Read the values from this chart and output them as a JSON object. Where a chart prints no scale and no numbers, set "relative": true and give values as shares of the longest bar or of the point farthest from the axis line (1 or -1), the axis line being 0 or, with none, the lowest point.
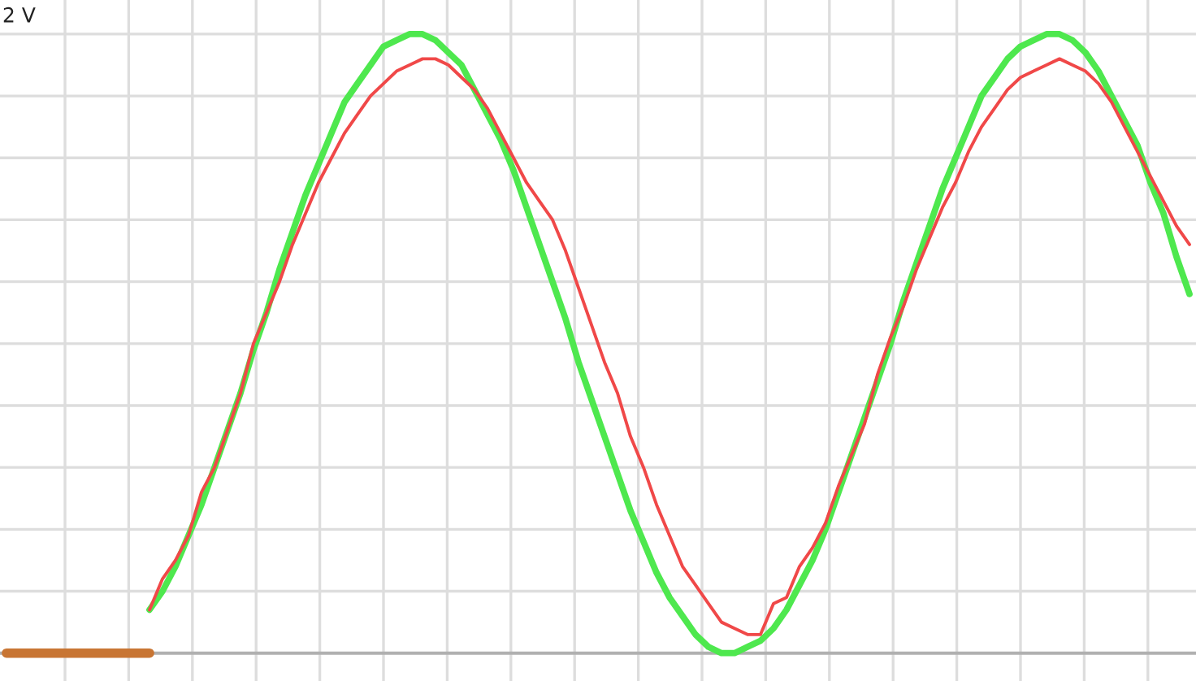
{
  "chart_data": {
    "type": "line",
    "relative": true,
    "grid": true,
    "annotations": [
      "2 V"
    ],
    "categories": [
      null,
      null,
      null,
      null,
      null,
      null,
      null,
      null,
      null,
      null,
      null,
      null,
      null,
      null,
      null,
      null,
      null,
      null,
      null,
      null,
      null,
      null,
      null,
      null,
      null,
      null,
      null,
      null,
      null,
      null,
      null,
      null,
      null,
      null,
      null,
      null,
      null,
      null,
      null,
      null,
      null,
      null,
      null,
      null,
      null,
      null,
      null,
      null,
      null,
      null,
      null,
      null,
      null,
      null,
      null,
      null,
      null,
      null,
      null,
      null,
      null,
      null,
      null,
      null,
      null,
      null,
      null,
      null,
      null,
      null,
      null,
      null,
      null,
      null,
      null,
      null,
      null,
      null,
      null,
      null,
      null,
      null,
      null,
      null,
      null,
      null,
      null,
      null,
      null,
      null,
      null,
      null
    ],
    "series": [
      {
        "color": "#c87533",
        "values": [
          0,
          0,
          0,
          0,
          0,
          0,
          0,
          0,
          0,
          0,
          0,
          0,
          null,
          null,
          null,
          null,
          null,
          null,
          null,
          null,
          null,
          null,
          null,
          null,
          null,
          null,
          null,
          null,
          null,
          null,
          null,
          null,
          null,
          null,
          null,
          null,
          null,
          null,
          null,
          null,
          null,
          null,
          null,
          null,
          null,
          null,
          null,
          null,
          null,
          null,
          null,
          null,
          null,
          null,
          null,
          null,
          null,
          null,
          null,
          null,
          null,
          null,
          null,
          null,
          null,
          null,
          null,
          null,
          null,
          null,
          null,
          null,
          null,
          null,
          null,
          null,
          null,
          null,
          null,
          null,
          null,
          null,
          null,
          null,
          null,
          null,
          null,
          null,
          null,
          null,
          null,
          null
        ]
      },
      {
        "color": "#4ee84e",
        "values": [
          null,
          null,
          null,
          null,
          null,
          null,
          null,
          null,
          null,
          null,
          null,
          0.07,
          0.1,
          0.14,
          0.19,
          0.24,
          0.3,
          0.36,
          0.42,
          0.49,
          0.55,
          0.62,
          0.68,
          0.74,
          0.79,
          0.84,
          0.89,
          0.92,
          0.95,
          0.98,
          0.99,
          1.0,
          1.0,
          0.99,
          0.97,
          0.95,
          0.91,
          0.87,
          0.83,
          0.78,
          0.72,
          0.66,
          0.6,
          0.54,
          0.47,
          0.41,
          0.35,
          0.29,
          0.23,
          0.18,
          0.13,
          0.09,
          0.06,
          0.03,
          0.01,
          0,
          0,
          0.01,
          0.02,
          0.04,
          0.07,
          0.11,
          0.15,
          0.2,
          0.26,
          0.32,
          0.38,
          0.44,
          0.5,
          0.57,
          0.63,
          0.69,
          0.75,
          0.8,
          0.85,
          0.9,
          0.93,
          0.96,
          0.98,
          0.99,
          1.0,
          1.0,
          0.99,
          0.97,
          0.94,
          0.9,
          0.86,
          0.82,
          0.76,
          0.71,
          0.64,
          0.58
        ]
      },
      {
        "color": "#f04848",
        "values": [
          null,
          null,
          null,
          null,
          null,
          null,
          null,
          null,
          null,
          null,
          null,
          0.07,
          0.12,
          0.15,
          0.19,
          0.26,
          0.3,
          0.36,
          0.42,
          0.5,
          0.55,
          0.6,
          0.66,
          0.71,
          0.76,
          0.8,
          0.84,
          0.87,
          0.9,
          0.92,
          0.94,
          0.95,
          0.96,
          0.96,
          0.95,
          0.93,
          0.91,
          0.88,
          0.84,
          0.8,
          0.76,
          0.73,
          0.7,
          0.65,
          0.59,
          0.53,
          0.47,
          0.42,
          0.35,
          0.3,
          0.24,
          0.19,
          0.14,
          0.11,
          0.08,
          0.05,
          0.04,
          0.03,
          0.03,
          0.08,
          0.09,
          0.14,
          0.17,
          0.21,
          0.27,
          0.32,
          0.37,
          0.45,
          0.51,
          0.56,
          0.62,
          0.67,
          0.72,
          0.76,
          0.81,
          0.85,
          0.88,
          0.91,
          0.93,
          0.94,
          0.95,
          0.96,
          0.95,
          0.94,
          0.92,
          0.89,
          0.85,
          0.81,
          0.77,
          0.73,
          0.69,
          0.66
        ]
      }
    ]
  }
}
